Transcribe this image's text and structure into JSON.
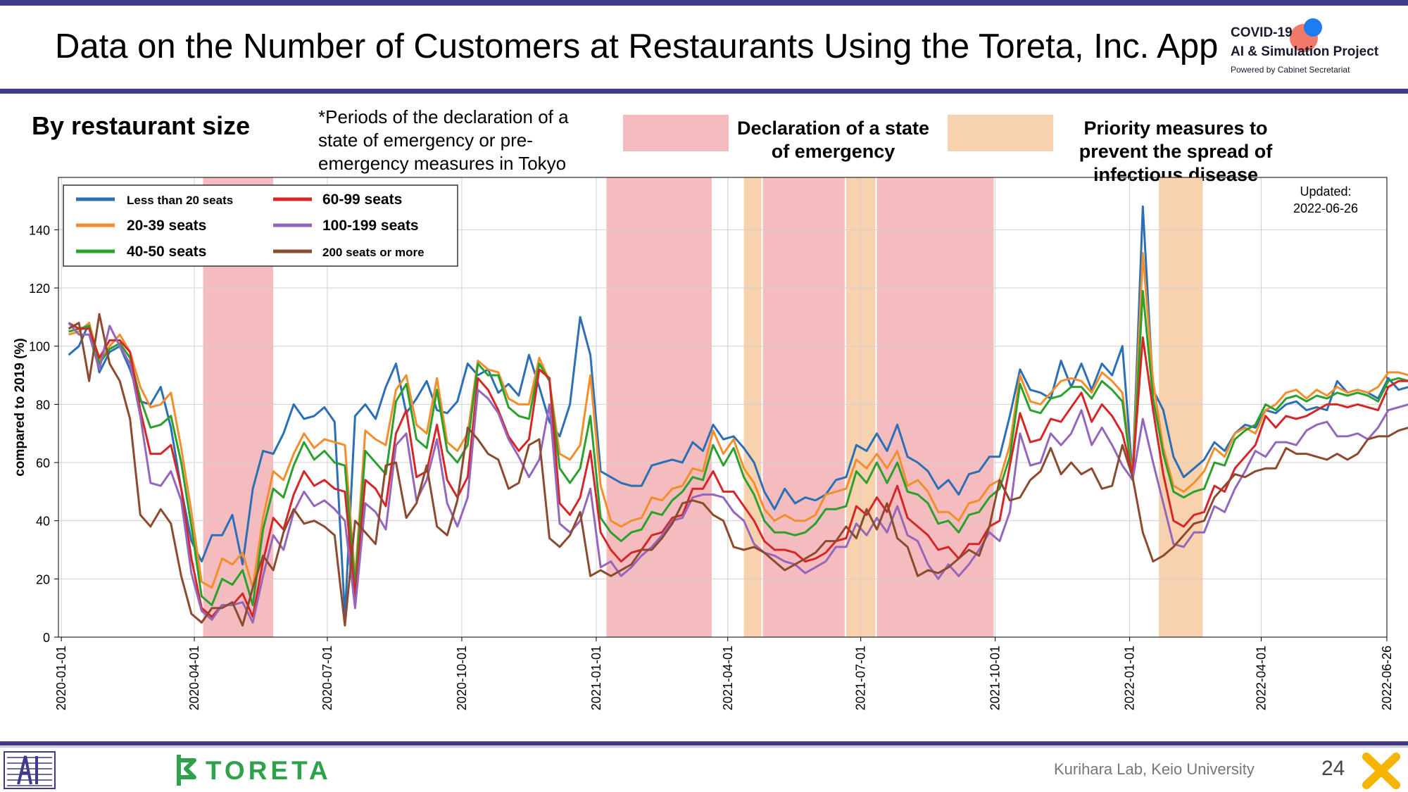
{
  "page": {
    "title": "Data on the Number of Customers at Restaurants Using the Toreta, Inc. App",
    "brand_line1": "COVID-19",
    "brand_line2": "AI & Simulation Project",
    "brand_line3": "Powered by Cabinet Secretariat",
    "subtitle": "By restaurant size",
    "note": "*Periods of the declaration of a state of emergency or pre-emergency measures in Tokyo",
    "legend_emergency": "Declaration of a state of emergency",
    "legend_priority": "Priority measures to prevent the spread of infectious disease",
    "footer_brand": "TORETA",
    "footer_lab": "Kurihara Lab, Keio University",
    "page_number": "24"
  },
  "colors": {
    "emergency": "#f4bcbf",
    "priority": "#f8d2ae",
    "bars": "#3f3a8a",
    "toreta": "#2ea14b"
  },
  "chart_data": {
    "type": "line",
    "updated_label": "Updated:",
    "updated_date": "2022-06-26",
    "ylabel": "compared to 2019 (%)",
    "xlabel": "",
    "ylim": [
      0,
      158
    ],
    "yticks": [
      0,
      20,
      40,
      60,
      80,
      100,
      120,
      140
    ],
    "xlim": [
      "2019-12-30",
      "2022-06-26"
    ],
    "xticks": [
      "2020-01-01",
      "2020-04-01",
      "2020-07-01",
      "2020-10-01",
      "2021-01-01",
      "2021-04-01",
      "2021-07-01",
      "2021-10-01",
      "2022-01-01",
      "2022-04-01",
      "2022-06-26"
    ],
    "grid": true,
    "legend_position": "top-left",
    "emergency_periods": [
      [
        "2020-04-07",
        "2020-05-25"
      ],
      [
        "2021-01-08",
        "2021-03-21"
      ],
      [
        "2021-04-25",
        "2021-06-20"
      ],
      [
        "2021-07-12",
        "2021-09-30"
      ]
    ],
    "priority_periods": [
      [
        "2021-04-12",
        "2021-04-24"
      ],
      [
        "2021-06-21",
        "2021-07-11"
      ],
      [
        "2022-01-21",
        "2022-02-20"
      ]
    ],
    "series": [
      {
        "name": "Less than 20 seats",
        "color": "#2b6fb5",
        "values": [
          97,
          100,
          108,
          91,
          98,
          100,
          92,
          81,
          80,
          86,
          72,
          51,
          33,
          26,
          35,
          35,
          42,
          25,
          51,
          64,
          63,
          70,
          80,
          75,
          76,
          79,
          74,
          7,
          76,
          80,
          75,
          86,
          94,
          77,
          82,
          88,
          78,
          77,
          81,
          94,
          90,
          92,
          84,
          87,
          83,
          97,
          86,
          74,
          69,
          80,
          110,
          97,
          57,
          55,
          53,
          52,
          52,
          59,
          60,
          61,
          60,
          67,
          64,
          73,
          68,
          69,
          65,
          60,
          50,
          44,
          51,
          46,
          48,
          47,
          49,
          54,
          55,
          66,
          64,
          70,
          64,
          73,
          62,
          60,
          57,
          51,
          54,
          49,
          56,
          57,
          62,
          62,
          76,
          92,
          85,
          84,
          82,
          95,
          86,
          94,
          85,
          94,
          90,
          100,
          55,
          148,
          85,
          78,
          62,
          55,
          58,
          61,
          67,
          64,
          70,
          73,
          72,
          78,
          77,
          80,
          81,
          78,
          79,
          78,
          88,
          84,
          85,
          84,
          82,
          89,
          85,
          86
        ],
        "labels_note": "weekly"
      },
      {
        "name": "20-39 seats",
        "color": "#f28e2b",
        "values": [
          104,
          105,
          108,
          95,
          100,
          104,
          98,
          86,
          79,
          80,
          84,
          65,
          43,
          19,
          17,
          27,
          25,
          29,
          17,
          41,
          57,
          54,
          63,
          70,
          65,
          68,
          67,
          66,
          20,
          71,
          68,
          66,
          85,
          90,
          73,
          70,
          89,
          67,
          64,
          70,
          95,
          92,
          91,
          82,
          80,
          80,
          96,
          88,
          63,
          61,
          66,
          90,
          52,
          40,
          38,
          40,
          41,
          48,
          47,
          51,
          52,
          58,
          57,
          71,
          63,
          68,
          58,
          53,
          44,
          40,
          42,
          40,
          40,
          42,
          49,
          50,
          51,
          61,
          58,
          63,
          58,
          64,
          52,
          54,
          50,
          43,
          43,
          40,
          46,
          47,
          52,
          54,
          66,
          90,
          81,
          80,
          84,
          88,
          89,
          88,
          84,
          91,
          88,
          84,
          55,
          132,
          88,
          65,
          52,
          50,
          53,
          57,
          65,
          62,
          70,
          72,
          70,
          78,
          80,
          84,
          85,
          82,
          85,
          83,
          86,
          84,
          85,
          84,
          86,
          91,
          91,
          90
        ]
      },
      {
        "name": "40-50 seats",
        "color": "#2ca02c",
        "values": [
          105,
          106,
          107,
          94,
          99,
          101,
          96,
          82,
          72,
          73,
          76,
          60,
          38,
          14,
          11,
          20,
          18,
          23,
          11,
          37,
          51,
          48,
          59,
          67,
          61,
          64,
          60,
          59,
          18,
          64,
          60,
          56,
          81,
          87,
          68,
          65,
          85,
          64,
          60,
          66,
          94,
          90,
          90,
          79,
          76,
          75,
          94,
          88,
          58,
          53,
          58,
          76,
          41,
          36,
          33,
          36,
          37,
          43,
          42,
          47,
          50,
          55,
          54,
          66,
          59,
          65,
          55,
          49,
          40,
          36,
          36,
          35,
          36,
          39,
          44,
          44,
          45,
          57,
          53,
          60,
          53,
          60,
          50,
          49,
          46,
          39,
          40,
          36,
          42,
          43,
          48,
          51,
          62,
          87,
          78,
          77,
          82,
          83,
          86,
          86,
          82,
          88,
          85,
          81,
          54,
          119,
          82,
          63,
          50,
          48,
          50,
          51,
          60,
          59,
          68,
          71,
          73,
          80,
          78,
          82,
          83,
          81,
          83,
          82,
          84,
          83,
          84,
          83,
          81,
          88,
          89,
          88
        ]
      },
      {
        "name": "60-99 seats",
        "color": "#d62728",
        "values": [
          108,
          106,
          106,
          96,
          102,
          102,
          98,
          78,
          63,
          63,
          66,
          51,
          27,
          10,
          7,
          11,
          11,
          15,
          7,
          26,
          41,
          37,
          49,
          57,
          52,
          54,
          51,
          50,
          14,
          54,
          51,
          45,
          70,
          78,
          55,
          57,
          73,
          54,
          48,
          55,
          89,
          85,
          78,
          69,
          64,
          68,
          92,
          89,
          46,
          42,
          48,
          64,
          36,
          30,
          26,
          29,
          30,
          35,
          36,
          41,
          42,
          51,
          51,
          57,
          50,
          50,
          45,
          40,
          33,
          30,
          30,
          29,
          26,
          27,
          29,
          33,
          34,
          45,
          42,
          48,
          43,
          52,
          41,
          38,
          35,
          30,
          31,
          27,
          32,
          32,
          38,
          40,
          59,
          77,
          67,
          68,
          75,
          74,
          79,
          84,
          74,
          80,
          76,
          70,
          56,
          103,
          78,
          56,
          40,
          38,
          42,
          43,
          52,
          50,
          58,
          62,
          66,
          76,
          72,
          76,
          75,
          76,
          78,
          80,
          80,
          79,
          80,
          79,
          78,
          86,
          88,
          88
        ]
      },
      {
        "name": "100-199 seats",
        "color": "#9467bd",
        "values": [
          108,
          104,
          104,
          92,
          107,
          100,
          94,
          76,
          53,
          52,
          57,
          47,
          22,
          9,
          6,
          11,
          11,
          12,
          5,
          21,
          35,
          30,
          43,
          50,
          45,
          47,
          44,
          40,
          10,
          46,
          43,
          37,
          66,
          70,
          47,
          54,
          68,
          46,
          38,
          48,
          85,
          82,
          77,
          68,
          62,
          55,
          61,
          80,
          39,
          36,
          40,
          51,
          24,
          26,
          21,
          24,
          28,
          31,
          35,
          40,
          41,
          48,
          49,
          49,
          48,
          43,
          40,
          32,
          29,
          28,
          26,
          25,
          22,
          24,
          26,
          31,
          31,
          39,
          35,
          41,
          36,
          45,
          35,
          33,
          25,
          20,
          25,
          21,
          25,
          30,
          36,
          33,
          43,
          70,
          59,
          60,
          70,
          66,
          70,
          78,
          66,
          72,
          66,
          59,
          54,
          75,
          60,
          46,
          32,
          31,
          36,
          36,
          45,
          43,
          51,
          57,
          64,
          62,
          67,
          67,
          66,
          71,
          73,
          74,
          69,
          69,
          70,
          68,
          72,
          78,
          79,
          80
        ]
      },
      {
        "name": "200 seats or more",
        "color": "#8c4a2f",
        "values": [
          106,
          108,
          88,
          111,
          94,
          88,
          75,
          42,
          38,
          44,
          39,
          21,
          8,
          5,
          10,
          10,
          12,
          4,
          17,
          28,
          23,
          36,
          44,
          39,
          40,
          38,
          35,
          4,
          40,
          36,
          32,
          59,
          60,
          41,
          46,
          59,
          38,
          35,
          47,
          72,
          68,
          63,
          61,
          51,
          53,
          66,
          68,
          34,
          31,
          35,
          43,
          21,
          23,
          21,
          23,
          25,
          30,
          30,
          34,
          39,
          46,
          47,
          46,
          42,
          40,
          31,
          30,
          31,
          29,
          26,
          23,
          25,
          27,
          29,
          33,
          33,
          38,
          34,
          44,
          37,
          46,
          34,
          31,
          21,
          23,
          22,
          24,
          27,
          30,
          28,
          38,
          54,
          47,
          48,
          54,
          57,
          65,
          56,
          60,
          56,
          58,
          51,
          52,
          66,
          55,
          36,
          26,
          28,
          31,
          35,
          39,
          40,
          48,
          52,
          56,
          55,
          57,
          58,
          58,
          65,
          63,
          63,
          62,
          61,
          63,
          61,
          63,
          68,
          69,
          69,
          71,
          72
        ]
      }
    ],
    "start_date": "2020-01-06",
    "step_days": 7
  }
}
